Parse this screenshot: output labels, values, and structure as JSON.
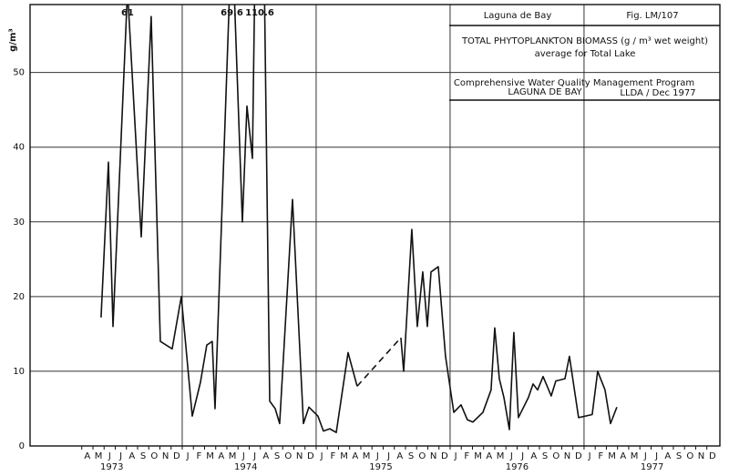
{
  "chart_data": {
    "type": "line",
    "y_label": "g/m³",
    "annotations": {
      "location": "Laguna de Bay",
      "figure": "Fig. LM/107",
      "title": "TOTAL PHYTOPLANKTON BIOMASS (g / m³ wet weight)",
      "subtitle": "average for Total Lake",
      "program": "Comprehensive Water Quality Management Program",
      "program_place": "LAGUNA DE BAY",
      "credit": "LLDA / Dec 1977"
    },
    "xlim": [
      -1.63,
      60.17
    ],
    "ylim": [
      0,
      59.1
    ],
    "yticks": [
      0,
      10,
      20,
      30,
      40,
      50
    ],
    "xgrid": [
      12,
      24,
      36,
      48
    ],
    "grid": true,
    "xticks": [
      {
        "value": 3.5,
        "label": "A"
      },
      {
        "value": 4.5,
        "label": "M"
      },
      {
        "value": 5.5,
        "label": "J"
      },
      {
        "value": 6.5,
        "label": "J"
      },
      {
        "value": 7.5,
        "label": "A"
      },
      {
        "value": 8.5,
        "label": "S"
      },
      {
        "value": 9.5,
        "label": "O"
      },
      {
        "value": 10.5,
        "label": "N"
      },
      {
        "value": 11.5,
        "label": "D"
      },
      {
        "value": 12.5,
        "label": "J"
      },
      {
        "value": 13.5,
        "label": "F"
      },
      {
        "value": 14.5,
        "label": "M"
      },
      {
        "value": 15.5,
        "label": "A"
      },
      {
        "value": 16.5,
        "label": "M"
      },
      {
        "value": 17.5,
        "label": "J"
      },
      {
        "value": 18.5,
        "label": "J"
      },
      {
        "value": 19.5,
        "label": "A"
      },
      {
        "value": 20.5,
        "label": "S"
      },
      {
        "value": 21.5,
        "label": "O"
      },
      {
        "value": 22.5,
        "label": "N"
      },
      {
        "value": 23.5,
        "label": "D"
      },
      {
        "value": 24.5,
        "label": "J"
      },
      {
        "value": 25.5,
        "label": "F"
      },
      {
        "value": 26.5,
        "label": "M"
      },
      {
        "value": 27.5,
        "label": "A"
      },
      {
        "value": 28.5,
        "label": "M"
      },
      {
        "value": 29.5,
        "label": "J"
      },
      {
        "value": 30.5,
        "label": "J"
      },
      {
        "value": 31.5,
        "label": "A"
      },
      {
        "value": 32.5,
        "label": "S"
      },
      {
        "value": 33.5,
        "label": "O"
      },
      {
        "value": 34.5,
        "label": "N"
      },
      {
        "value": 35.5,
        "label": "D"
      },
      {
        "value": 36.5,
        "label": "J"
      },
      {
        "value": 37.5,
        "label": "F"
      },
      {
        "value": 38.5,
        "label": "M"
      },
      {
        "value": 39.5,
        "label": "A"
      },
      {
        "value": 40.5,
        "label": "M"
      },
      {
        "value": 41.5,
        "label": "J"
      },
      {
        "value": 42.5,
        "label": "J"
      },
      {
        "value": 43.5,
        "label": "A"
      },
      {
        "value": 44.5,
        "label": "S"
      },
      {
        "value": 45.5,
        "label": "O"
      },
      {
        "value": 46.5,
        "label": "N"
      },
      {
        "value": 47.5,
        "label": "D"
      },
      {
        "value": 48.5,
        "label": "J"
      },
      {
        "value": 49.5,
        "label": "F"
      },
      {
        "value": 50.5,
        "label": "M"
      },
      {
        "value": 51.5,
        "label": "A"
      },
      {
        "value": 52.5,
        "label": "M"
      },
      {
        "value": 53.5,
        "label": "J"
      },
      {
        "value": 54.5,
        "label": "J"
      },
      {
        "value": 55.5,
        "label": "A"
      },
      {
        "value": 56.5,
        "label": "S"
      },
      {
        "value": 57.5,
        "label": "O"
      },
      {
        "value": 58.5,
        "label": "N"
      },
      {
        "value": 59.5,
        "label": "D"
      }
    ],
    "year_labels": [
      {
        "value": 5.7,
        "label": "1973"
      },
      {
        "value": 17.7,
        "label": "1974"
      },
      {
        "value": 29.8,
        "label": "1975"
      },
      {
        "value": 42.0,
        "label": "1976"
      },
      {
        "value": 54.1,
        "label": "1977"
      }
    ],
    "series": [
      {
        "color": "#111111",
        "dashed": false,
        "x": [
          4.73,
          5.39,
          5.8,
          7.1,
          8.33,
          9.22,
          10.04,
          11.1,
          11.92,
          12.9,
          13.63,
          14.2,
          14.69,
          14.94,
          16.45,
          17.39,
          17.8,
          18.29,
          18.94,
          19.84,
          20.33,
          20.73,
          21.88,
          22.86,
          23.35,
          24.16,
          24.65,
          25.22,
          25.8,
          26.86,
          27.67
        ],
        "values": [
          17.2,
          38,
          16,
          61,
          28,
          57.5,
          14,
          13,
          20,
          4,
          8.5,
          13.5,
          14,
          5,
          69.6,
          30,
          45.5,
          38.5,
          110.6,
          6,
          5,
          3,
          33,
          3,
          5.2,
          4,
          2,
          2.3,
          1.8,
          12.5,
          8
        ],
        "value_labels": [
          null,
          null,
          null,
          "61",
          null,
          null,
          null,
          null,
          null,
          null,
          null,
          null,
          null,
          null,
          "69.6",
          null,
          null,
          null,
          "110.6",
          null,
          null,
          null,
          null,
          null,
          null,
          null,
          null,
          null,
          null,
          null,
          null
        ]
      },
      {
        "color": "#111111",
        "dashed": true,
        "x": [
          27.67,
          31.59
        ],
        "values": [
          8,
          14.5
        ]
      },
      {
        "color": "#111111",
        "dashed": false,
        "x": [
          31.59,
          31.84,
          32.57,
          33.06,
          33.55,
          33.96,
          34.29,
          34.94,
          35.59,
          36.33,
          36.98,
          37.55,
          38.04,
          38.94,
          39.67,
          40.0,
          40.41,
          40.82,
          41.31,
          41.71,
          42.12,
          43.02,
          43.43,
          43.84,
          44.33,
          45.06,
          45.47,
          46.29,
          46.69,
          47.51,
          48.73,
          49.22,
          49.88,
          50.37,
          50.94
        ],
        "values": [
          14.5,
          10,
          29,
          16,
          23.3,
          16,
          23.3,
          24,
          12,
          4.5,
          5.5,
          3.5,
          3.2,
          4.5,
          7.5,
          15.8,
          9,
          6.5,
          2.2,
          15.2,
          3.8,
          6.5,
          8.3,
          7.5,
          9.3,
          6.7,
          8.7,
          9,
          12,
          3.8,
          4.2,
          10,
          7.5,
          3,
          5.2
        ]
      }
    ]
  }
}
